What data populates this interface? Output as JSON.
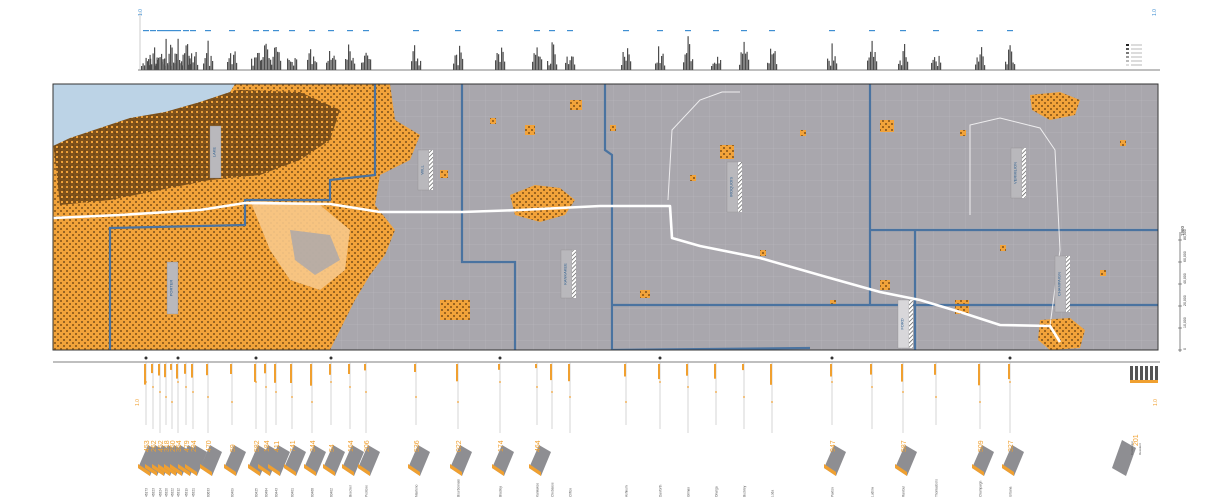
{
  "colors": {
    "urban_orange": "#f2a33a",
    "urban_dark": "#5a3a12",
    "rural_gray": "#a9a7ad",
    "county_line": "#4a73a0",
    "lake": "#bcd3e6",
    "route": "#ffffff",
    "hist_gray": "#4d4d4d",
    "accent_blue": "#3f8fd2",
    "bar_orange": "#f0a030"
  },
  "legend": {
    "year": "1960",
    "scale_ticks": [
      "0",
      "10,000",
      "20,000",
      "40,000",
      "60,000",
      "80,000"
    ]
  },
  "counties": [
    {
      "name": "LAKE"
    },
    {
      "name": "PORTER"
    },
    {
      "name": "WILL"
    },
    {
      "name": "KANKAKEE"
    },
    {
      "name": "IROQUOIS"
    },
    {
      "name": "FORD"
    },
    {
      "name": "VERMILION"
    },
    {
      "name": "CHAMPAIGN"
    }
  ],
  "axis_marks": {
    "top_scale": "1.0",
    "bottom_scale": "1.0"
  },
  "towns": [
    {
      "name": "46173",
      "value": "453"
    },
    {
      "name": "46323",
      "value": "262"
    },
    {
      "name": "46324",
      "value": "452"
    },
    {
      "name": "46320",
      "value": "318"
    },
    {
      "name": "46322",
      "value": "250"
    },
    {
      "name": "46312",
      "value": "354"
    },
    {
      "name": "46319",
      "value": "479"
    },
    {
      "name": "46321",
      "value": "294"
    },
    {
      "name": "60633",
      "value": "470"
    },
    {
      "name": "60409",
      "value": "59"
    },
    {
      "name": "60425",
      "value": "582"
    },
    {
      "name": "60484",
      "value": "184"
    },
    {
      "name": "60443",
      "value": "411"
    },
    {
      "name": "60401",
      "value": "741"
    },
    {
      "name": "60468",
      "value": "344"
    },
    {
      "name": "60402",
      "value": "54"
    },
    {
      "name": "Beecher",
      "value": "164"
    },
    {
      "name": "Peotone",
      "value": "206"
    },
    {
      "name": "Manteno",
      "value": "536"
    },
    {
      "name": "Bourbonnais",
      "value": "022"
    },
    {
      "name": "Bradley",
      "value": "174"
    },
    {
      "name": "Kankakee",
      "value": "464"
    },
    {
      "name": "Chebanse",
      "value": ""
    },
    {
      "name": "Clifton",
      "value": ""
    },
    {
      "name": "Ashkum",
      "value": ""
    },
    {
      "name": "Danforth",
      "value": ""
    },
    {
      "name": "Gilman",
      "value": ""
    },
    {
      "name": "Onarga",
      "value": ""
    },
    {
      "name": "Buckley",
      "value": ""
    },
    {
      "name": "Loda",
      "value": ""
    },
    {
      "name": "Paxton",
      "value": "947"
    },
    {
      "name": "Ludlow",
      "value": ""
    },
    {
      "name": "Rantoul",
      "value": "587"
    },
    {
      "name": "Thomasboro",
      "value": ""
    },
    {
      "name": "Champaign",
      "value": "509"
    },
    {
      "name": "Urbana",
      "value": "327"
    }
  ],
  "sample_key": {
    "value": "201",
    "label_a": "Commuter",
    "label_b": "Resident"
  }
}
